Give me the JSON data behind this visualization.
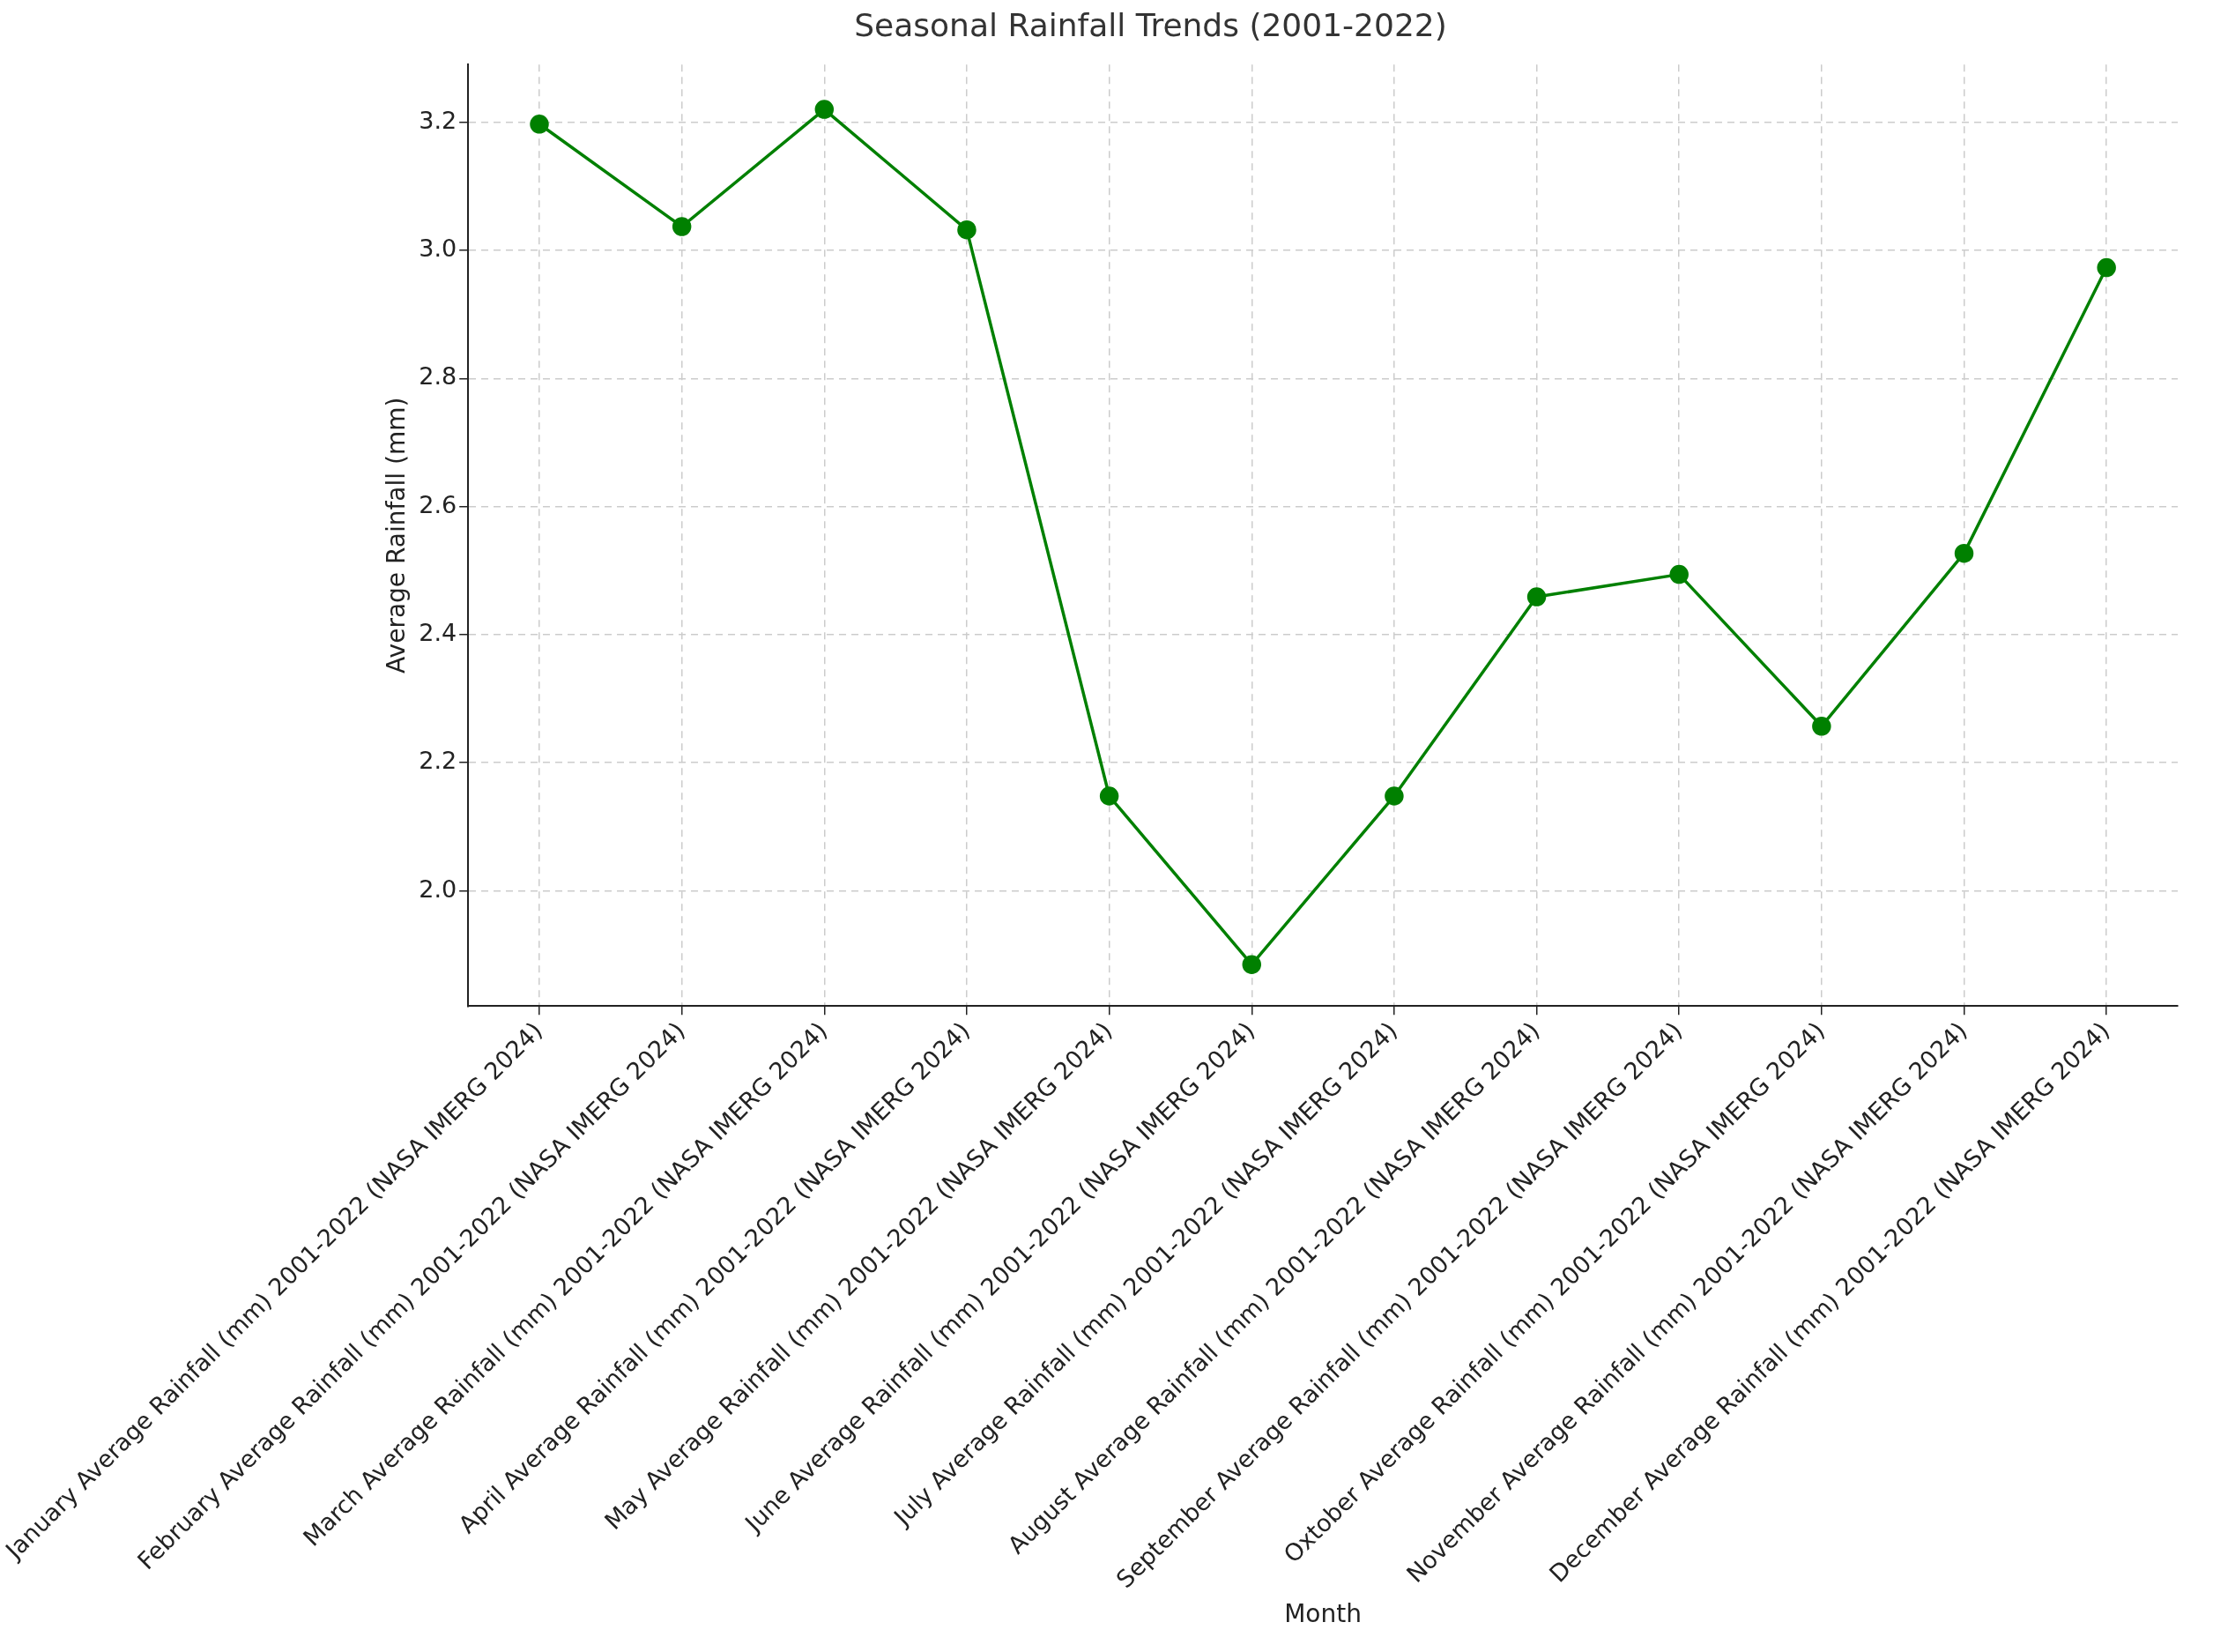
{
  "chart_data": {
    "type": "line",
    "title": "Seasonal Rainfall Trends (2001-2022)",
    "xlabel": "Month",
    "ylabel": "Average Rainfall (mm)",
    "categories": [
      "January Average Rainfall (mm) 2001-2022 (NASA IMERG 2024)",
      "February Average Rainfall (mm) 2001-2022 (NASA IMERG 2024)",
      "March Average Rainfall (mm) 2001-2022 (NASA IMERG 2024)",
      "April Average Rainfall (mm) 2001-2022 (NASA IMERG 2024)",
      "May Average Rainfall (mm) 2001-2022 (NASA IMERG 2024)",
      "June Average Rainfall (mm) 2001-2022 (NASA IMERG 2024)",
      "July Average Rainfall (mm) 2001-2022 (NASA IMERG 2024)",
      "August Average Rainfall (mm) 2001-2022 (NASA IMERG 2024)",
      "September Average Rainfall (mm) 2001-2022 (NASA IMERG 2024)",
      "Oxtober Average Rainfall (mm) 2001-2022 (NASA IMERG 2024)",
      "November Average Rainfall (mm) 2001-2022 (NASA IMERG 2024)",
      "December Average Rainfall (mm) 2001-2022 (NASA IMERG 2024)"
    ],
    "series": [
      {
        "color": "#008000",
        "values": [
          3.197,
          3.037,
          3.22,
          3.032,
          2.148,
          1.885,
          2.148,
          2.459,
          2.494,
          2.257,
          2.527,
          2.973
        ]
      }
    ],
    "ylim": [
      1.82,
      3.29
    ],
    "yticks": [
      {
        "value": 2,
        "label": "2.0"
      },
      2.2,
      2.4,
      2.6,
      2.8,
      {
        "value": 3,
        "label": "3.0"
      },
      3.2
    ],
    "grid": true,
    "marker": "circle",
    "line_style": "solid"
  }
}
